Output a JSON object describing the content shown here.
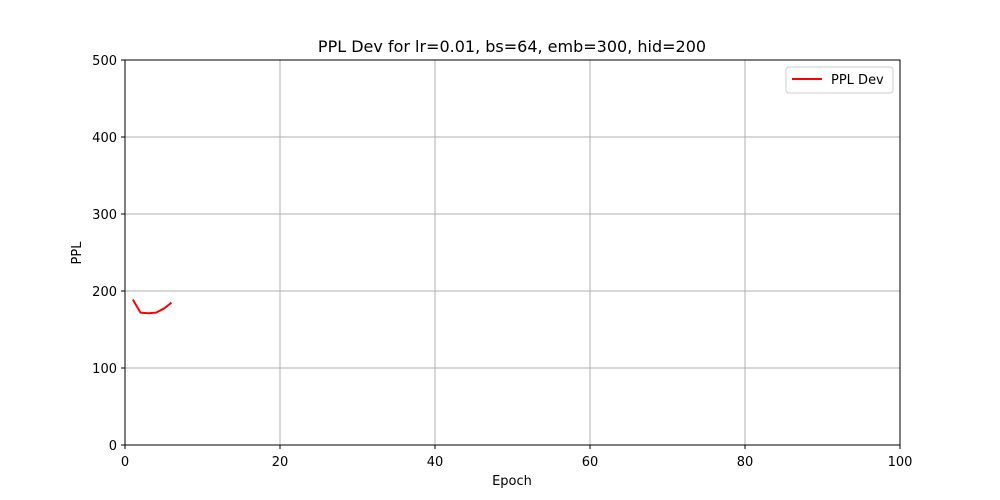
{
  "chart_data": {
    "type": "line",
    "title": "PPL Dev for lr=0.01, bs=64, emb=300, hid=200",
    "xlabel": "Epoch",
    "ylabel": "PPL",
    "xlim": [
      0,
      100
    ],
    "ylim": [
      0,
      500
    ],
    "xticks": [
      0,
      20,
      40,
      60,
      80,
      100
    ],
    "yticks": [
      0,
      100,
      200,
      300,
      400,
      500
    ],
    "grid": true,
    "legend_position": "top-right",
    "series": [
      {
        "name": "PPL Dev",
        "color": "#ff0000",
        "x": [
          1,
          2,
          3,
          4,
          5,
          6
        ],
        "y": [
          189,
          172,
          171,
          172,
          177,
          185
        ]
      }
    ]
  }
}
